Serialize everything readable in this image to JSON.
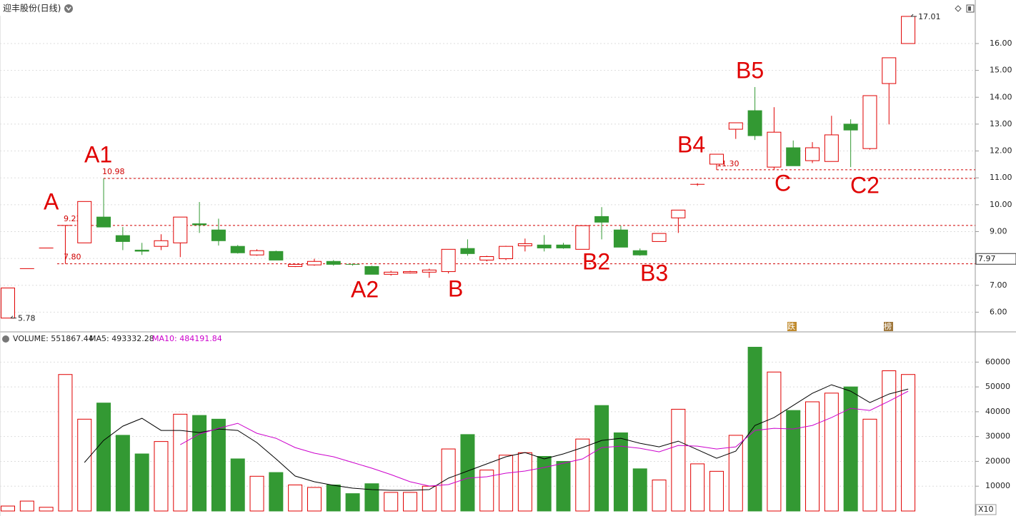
{
  "chart_data": [
    {
      "type": "candlestick",
      "title": "迎丰股份(日线)",
      "open": [
        5.78,
        7.62,
        8.39,
        9.23,
        8.58,
        9.54,
        8.85,
        8.31,
        8.45,
        8.58,
        9.29,
        9.06,
        8.45,
        8.13,
        8.26,
        7.7,
        7.76,
        7.89,
        7.78,
        7.7,
        7.41,
        7.46,
        7.49,
        7.51,
        8.37,
        7.94,
        7.99,
        8.47,
        8.5,
        8.5,
        8.34,
        9.56,
        9.06,
        8.29,
        8.63,
        9.51,
        10.76,
        11.51,
        12.81,
        13.5,
        11.4,
        12.12,
        11.64,
        11.61,
        13.0,
        12.09,
        14.51,
        16.0
      ],
      "high": [
        6.9,
        7.62,
        8.39,
        9.23,
        10.12,
        10.98,
        9.17,
        8.58,
        8.9,
        9.54,
        10.1,
        9.48,
        8.5,
        8.34,
        8.29,
        7.8,
        7.99,
        7.94,
        7.81,
        7.73,
        7.54,
        7.54,
        7.62,
        8.34,
        8.71,
        8.1,
        8.47,
        8.74,
        8.87,
        8.58,
        9.22,
        9.91,
        9.22,
        8.37,
        8.93,
        9.8,
        10.8,
        11.88,
        13.05,
        14.38,
        13.63,
        12.39,
        12.33,
        13.31,
        13.18,
        14.06,
        15.47,
        17.01
      ],
      "low": [
        5.78,
        7.62,
        8.39,
        7.8,
        8.58,
        9.17,
        8.31,
        8.13,
        8.31,
        8.05,
        8.95,
        8.48,
        8.18,
        8.1,
        7.94,
        7.68,
        7.73,
        7.73,
        7.73,
        7.41,
        7.36,
        7.44,
        7.28,
        7.44,
        8.1,
        7.89,
        7.94,
        8.26,
        8.26,
        8.36,
        8.34,
        8.71,
        8.42,
        8.1,
        8.63,
        8.95,
        10.7,
        11.3,
        12.45,
        12.41,
        11.3,
        11.45,
        11.55,
        11.61,
        11.4,
        12.05,
        12.99,
        16.0
      ],
      "close": [
        6.9,
        7.62,
        8.39,
        9.23,
        10.12,
        9.17,
        8.63,
        8.27,
        8.66,
        9.54,
        9.25,
        8.66,
        8.21,
        8.29,
        7.94,
        7.78,
        7.89,
        7.78,
        7.76,
        7.41,
        7.49,
        7.51,
        7.57,
        8.34,
        8.18,
        8.07,
        8.45,
        8.55,
        8.39,
        8.39,
        9.22,
        9.35,
        8.42,
        8.13,
        8.93,
        9.8,
        10.76,
        11.88,
        13.05,
        12.57,
        12.7,
        11.45,
        12.12,
        12.6,
        12.78,
        14.06,
        15.47,
        17.01
      ],
      "up_color": "#e00000",
      "down_color": "#339933",
      "ylim": [
        5.32,
        17.62
      ],
      "yticks": [
        {
          "value": 6,
          "label": "6.00"
        },
        {
          "value": 7,
          "label": "7.00"
        },
        {
          "value": 8,
          "label": "8.00"
        },
        {
          "value": 9,
          "label": "9.00"
        },
        {
          "value": 10,
          "label": "10.00"
        },
        {
          "value": 11,
          "label": "11.00"
        },
        {
          "value": 12,
          "label": "12.00"
        },
        {
          "value": 13,
          "label": "13.00"
        },
        {
          "value": 14,
          "label": "14.00"
        },
        {
          "value": 15,
          "label": "15.00"
        },
        {
          "value": 16,
          "label": "16.00"
        }
      ],
      "grid": true,
      "levels": [
        {
          "value": 10.98,
          "label": "10.98"
        },
        {
          "value": 9.23,
          "label": "9.23"
        },
        {
          "value": 7.8,
          "label": "7.80"
        },
        {
          "value": 11.3,
          "label": "11.30"
        }
      ],
      "extremes": [
        {
          "value": 17.01,
          "label": "17.01"
        },
        {
          "value": 5.78,
          "label": "5.78"
        }
      ],
      "price_marker": {
        "value": 7.97,
        "label": "7.97"
      },
      "annotations": [
        "A",
        "A1",
        "A2",
        "B",
        "B2",
        "B3",
        "B4",
        "B5",
        "C",
        "C2"
      ],
      "badges": [
        "跌",
        "榜"
      ]
    },
    {
      "type": "bar",
      "title": "VOLUME: 551867.44",
      "unit_label": "X10",
      "values": [
        2000,
        4000,
        1500,
        55000,
        37000,
        43500,
        30500,
        23000,
        28000,
        39000,
        38500,
        37000,
        21000,
        14000,
        15500,
        10500,
        9500,
        10500,
        7000,
        11000,
        7500,
        7500,
        10000,
        25000,
        30800,
        16500,
        22500,
        23500,
        22000,
        20000,
        29000,
        42500,
        31500,
        17000,
        12500,
        41000,
        19000,
        16000,
        30500,
        66000,
        56000,
        40500,
        44000,
        47500,
        50000,
        37000,
        56500,
        55000
      ],
      "ylim": [
        0,
        67000
      ],
      "yticks": [
        10000,
        20000,
        30000,
        40000,
        50000,
        60000
      ],
      "grid": true,
      "series": [
        {
          "name": "MA5: 493332.28",
          "color": "#000000",
          "values": [
            null,
            null,
            null,
            null,
            19540,
            28450,
            34200,
            37360,
            32470,
            32470,
            31610,
            33050,
            32470,
            27590,
            20980,
            14080,
            11780,
            10340,
            9200,
            8620,
            8330,
            8330,
            8620,
            13220,
            16090,
            18970,
            21840,
            23560,
            20980,
            22990,
            25570,
            28450,
            29310,
            27300,
            25860,
            28160,
            24710,
            21260,
            24140,
            34480,
            37640,
            42530,
            47410,
            50860,
            48280,
            43680,
            47130,
            49140
          ]
        },
        {
          "name": "MA10: 484191.84",
          "color": "#cc00cc",
          "values": [
            null,
            null,
            null,
            null,
            null,
            null,
            null,
            null,
            null,
            26720,
            31030,
            33330,
            35340,
            31320,
            29310,
            25570,
            23280,
            21840,
            19540,
            17240,
            14660,
            11780,
            10060,
            10630,
            13220,
            13790,
            15230,
            16090,
            17530,
            19250,
            20980,
            25570,
            26150,
            25290,
            23850,
            26440,
            26150,
            25000,
            25860,
            32470,
            33330,
            33050,
            34480,
            37640,
            41380,
            40520,
            44250,
            48280
          ]
        }
      ]
    }
  ]
}
